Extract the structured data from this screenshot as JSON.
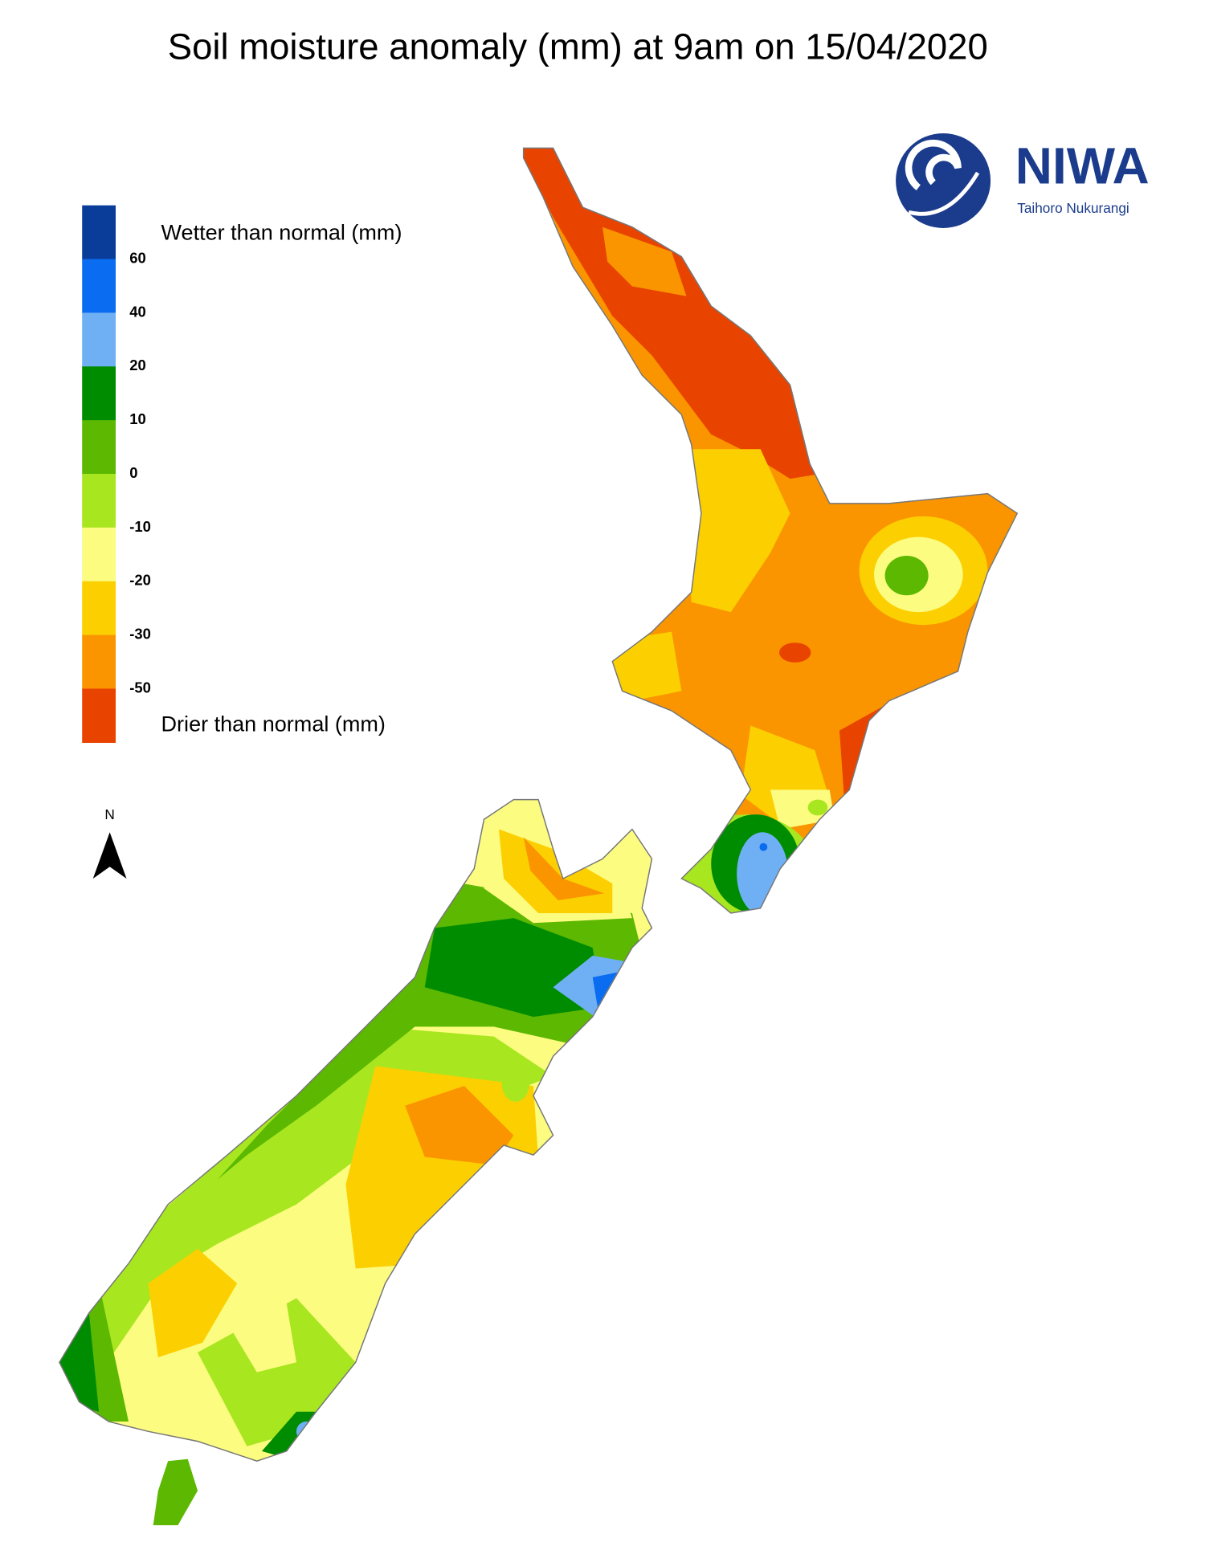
{
  "title": "Soil moisture anomaly (mm) at 9am on 15/04/2020",
  "legend": {
    "colors": [
      "#0a3d9a",
      "#0a6cf0",
      "#6fb0f5",
      "#008c00",
      "#5cb800",
      "#a8e620",
      "#fcfc80",
      "#fcd000",
      "#fa9500",
      "#e84400"
    ],
    "ticks": [
      60,
      40,
      20,
      10,
      0,
      -10,
      -20,
      -30,
      -50
    ],
    "wetter_label": "Wetter than normal (mm)",
    "drier_label": "Drier than normal (mm)"
  },
  "north_label": "N",
  "logo": {
    "name": "NIWA",
    "subtitle": "Taihoro Nukurangi"
  }
}
